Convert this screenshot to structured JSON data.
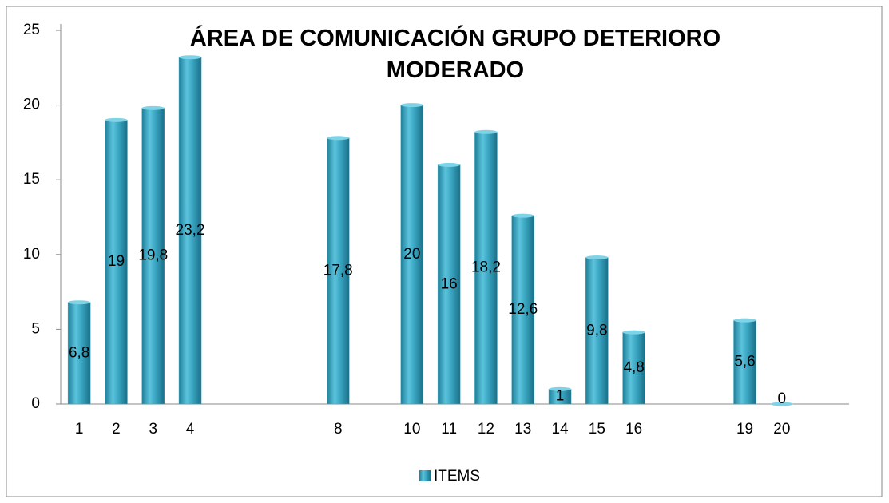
{
  "chart_data": {
    "type": "bar",
    "title": "ÁREA DE COMUNICACIÓN GRUPO DETERIORO MODERADO",
    "categories": [
      "1",
      "2",
      "3",
      "4",
      null,
      null,
      null,
      "8",
      null,
      "10",
      "11",
      "12",
      "13",
      "14",
      "15",
      "16",
      null,
      null,
      "19",
      "20"
    ],
    "series": [
      {
        "name": "ITEMS",
        "color": "#3aa6c2",
        "values": [
          6.8,
          19,
          19.8,
          23.2,
          null,
          null,
          null,
          17.8,
          null,
          20,
          16,
          18.2,
          12.6,
          1,
          9.8,
          4.8,
          null,
          null,
          5.6,
          0
        ],
        "value_labels": [
          "6,8",
          "19",
          "19,8",
          "23,2",
          null,
          null,
          null,
          "17,8",
          null,
          "20",
          "16",
          "18,2",
          "12,6",
          "1",
          "9,8",
          "4,8",
          null,
          null,
          "5,6",
          "0"
        ]
      }
    ],
    "ylim": [
      0,
      25
    ],
    "yticks": [
      0,
      5,
      10,
      15,
      20,
      25
    ],
    "grid": false,
    "legend": "bottom"
  }
}
